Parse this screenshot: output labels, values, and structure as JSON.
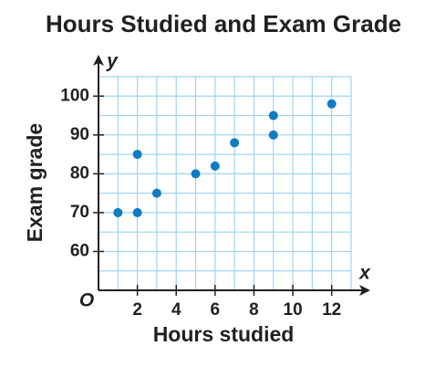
{
  "chart_data": {
    "type": "scatter",
    "title": "Hours Studied and Exam Grade",
    "x_label": "Hours studied",
    "y_label": "Exam grade",
    "x_axis_letter": "x",
    "y_axis_letter": "y",
    "origin_label": "O",
    "x": [
      1,
      2,
      2,
      3,
      5,
      6,
      7,
      9,
      9,
      12
    ],
    "values": [
      70,
      70,
      85,
      75,
      80,
      82,
      88,
      90,
      95,
      98
    ],
    "color": "#0e7cc2",
    "grid": true,
    "grid_color": "#9fd4ef",
    "xlim": [
      0,
      13
    ],
    "ylim": [
      50,
      105
    ],
    "xticks": [
      2,
      4,
      6,
      8,
      10,
      12
    ],
    "yticks": [
      60,
      70,
      80,
      90,
      100
    ],
    "xgrid": [
      1,
      2,
      3,
      4,
      5,
      6,
      7,
      8,
      9,
      10,
      11,
      12,
      13
    ],
    "ygrid": [
      55,
      60,
      65,
      70,
      75,
      80,
      85,
      90,
      95,
      100,
      105
    ]
  }
}
